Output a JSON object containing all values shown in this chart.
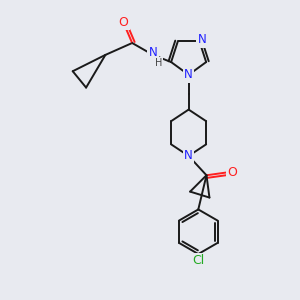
{
  "bg_color": "#e8eaf0",
  "bond_color": "#1a1a1a",
  "bond_width": 1.4,
  "atom_colors": {
    "N": "#2020ff",
    "O": "#ff2020",
    "Cl": "#22aa22",
    "NH": "#2020ff"
  },
  "font_size": 8.5
}
